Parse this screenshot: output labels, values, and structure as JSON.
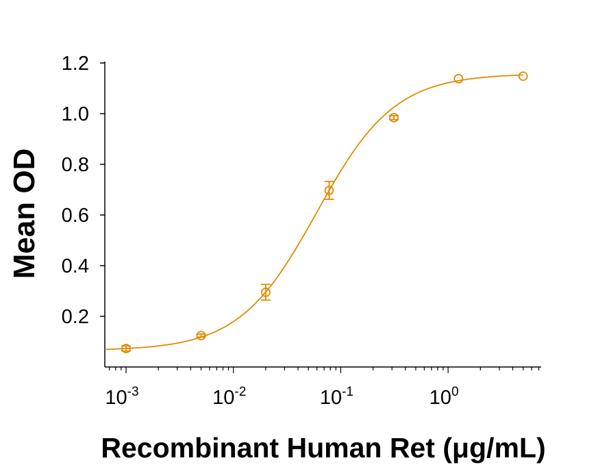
{
  "chart_data": {
    "type": "scatter",
    "title": "",
    "xlabel": "Recombinant Human Ret (μg/mL)",
    "ylabel": "Mean OD",
    "x_scale": "log",
    "xlim": [
      0.00065,
      7.4
    ],
    "ylim": [
      0,
      1.2
    ],
    "x_ticks": [
      {
        "value": 0.001,
        "base": "10",
        "exp": "-3"
      },
      {
        "value": 0.01,
        "base": "10",
        "exp": "-2"
      },
      {
        "value": 0.1,
        "base": "10",
        "exp": "-1"
      },
      {
        "value": 1,
        "base": "10",
        "exp": "0"
      }
    ],
    "y_ticks": [
      "0.2",
      "0.4",
      "0.6",
      "0.8",
      "1.0",
      "1.2"
    ],
    "grid": false,
    "legend": "none",
    "color": "#E08A00",
    "fit": "four-parameter logistic curve",
    "series": [
      {
        "x": [
          0.001,
          0.005,
          0.02,
          0.078,
          0.3125,
          1.25,
          5
        ],
        "y": [
          0.073,
          0.124,
          0.295,
          0.697,
          0.984,
          1.138,
          1.148
        ],
        "error": [
          0.01,
          0.006,
          0.031,
          0.035,
          0.008,
          0,
          0
        ]
      }
    ]
  }
}
